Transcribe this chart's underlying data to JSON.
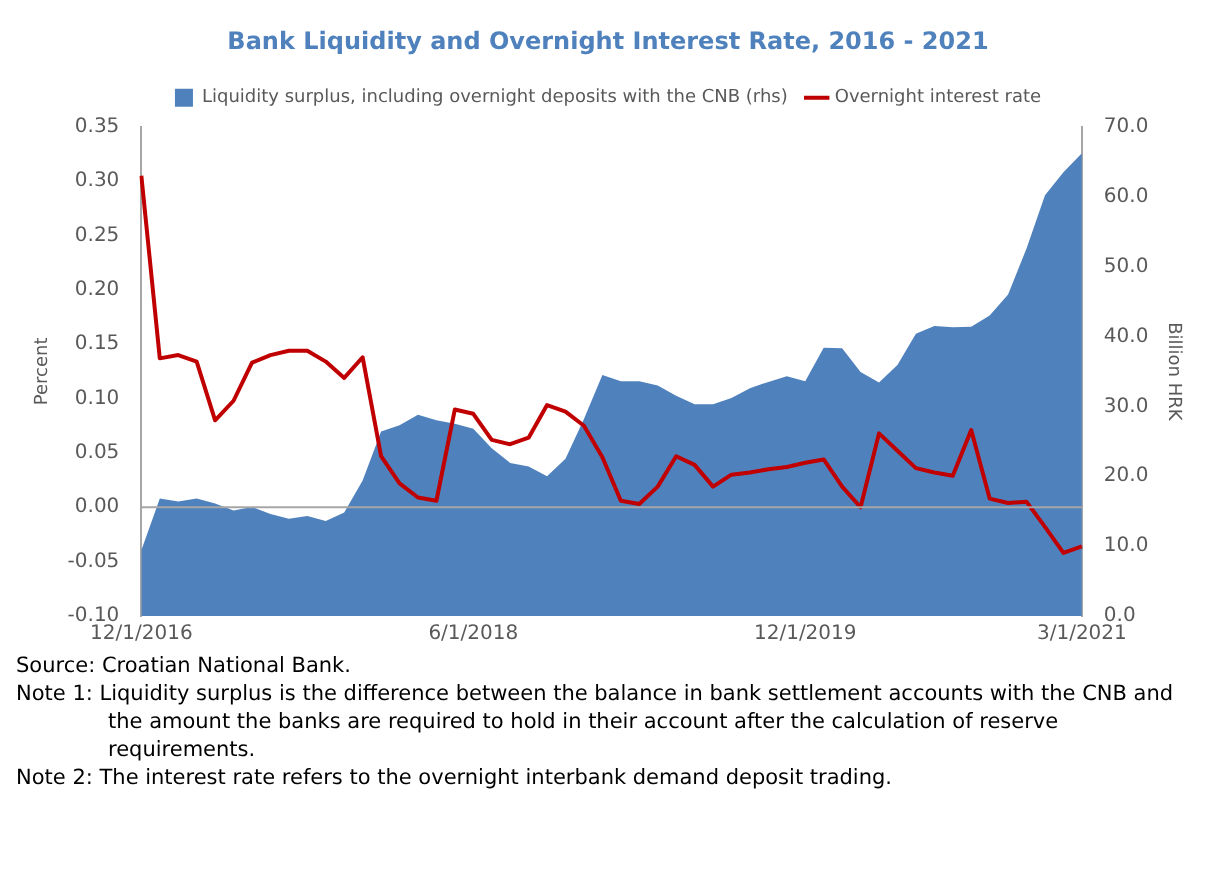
{
  "chart_data": {
    "type": "line",
    "title": "Bank Liquidity and Overnight Interest Rate, 2016 - 2021",
    "categories": [
      "12/1/2016",
      null,
      null,
      null,
      null,
      null,
      null,
      null,
      null,
      null,
      null,
      null,
      null,
      null,
      null,
      null,
      null,
      null,
      "6/1/2018",
      null,
      null,
      null,
      null,
      null,
      null,
      null,
      null,
      null,
      null,
      null,
      null,
      null,
      null,
      null,
      null,
      null,
      "12/1/2019",
      null,
      null,
      null,
      null,
      null,
      null,
      null,
      null,
      null,
      null,
      null,
      null,
      null,
      null,
      "3/1/2021"
    ],
    "series": [
      {
        "name": "Liquidity surplus, including overnight deposits with the CNB (rhs)",
        "type": "area",
        "axis": "y2",
        "color": "#4f81bd",
        "values": [
          9.4,
          16.8,
          16.4,
          16.8,
          16.1,
          15.1,
          15.6,
          14.6,
          13.9,
          14.3,
          13.6,
          14.8,
          19.4,
          26.4,
          27.3,
          28.8,
          28.0,
          27.5,
          26.8,
          24.0,
          21.9,
          21.4,
          20.0,
          22.5,
          28.2,
          34.5,
          33.6,
          33.6,
          33.0,
          31.5,
          30.3,
          30.3,
          31.2,
          32.6,
          33.5,
          34.3,
          33.6,
          38.4,
          38.3,
          34.9,
          33.4,
          35.9,
          40.4,
          41.5,
          41.3,
          41.4,
          43.0,
          46.0,
          52.6,
          60.2,
          63.5,
          66.2
        ]
      },
      {
        "name": "Overnight interest rate",
        "type": "line",
        "color": "#c00000",
        "values": [
          0.305,
          0.137,
          0.14,
          0.134,
          0.08,
          0.098,
          0.133,
          0.14,
          0.144,
          0.144,
          0.134,
          0.119,
          0.138,
          0.047,
          0.022,
          0.009,
          0.006,
          0.09,
          0.086,
          0.062,
          0.058,
          0.064,
          0.094,
          0.088,
          0.075,
          0.046,
          0.006,
          0.003,
          0.019,
          0.047,
          0.039,
          0.019,
          0.03,
          0.032,
          0.035,
          0.037,
          0.041,
          0.044,
          0.019,
          0.0,
          0.068,
          0.052,
          0.036,
          0.032,
          0.029,
          0.071,
          0.008,
          0.004,
          0.005,
          -0.018,
          -0.042,
          -0.036
        ]
      }
    ],
    "ylabel": "Percent",
    "y2label": "Billion HRK",
    "ylim": [
      -0.1,
      0.35
    ],
    "yticks": [
      {
        "value": -0.1,
        "label": "-0.10"
      },
      {
        "value": -0.05,
        "label": "-0.05"
      },
      {
        "value": 0,
        "label": "0.00"
      },
      {
        "value": 0.05,
        "label": "0.05"
      },
      {
        "value": 0.1,
        "label": "0.10"
      },
      {
        "value": 0.15,
        "label": "0.15"
      },
      {
        "value": 0.2,
        "label": "0.20"
      },
      {
        "value": 0.25,
        "label": "0.25"
      },
      {
        "value": 0.3,
        "label": "0.30"
      },
      {
        "value": 0.35,
        "label": "0.35"
      }
    ],
    "y2lim": [
      0,
      70
    ],
    "y2ticks": [
      {
        "value": 0,
        "label": "0.0"
      },
      {
        "value": 10,
        "label": "10.0"
      },
      {
        "value": 20,
        "label": "20.0"
      },
      {
        "value": 30,
        "label": "30.0"
      },
      {
        "value": 40,
        "label": "40.0"
      },
      {
        "value": 50,
        "label": "50.0"
      },
      {
        "value": 60,
        "label": "60.0"
      },
      {
        "value": 70,
        "label": "70.0"
      }
    ],
    "ref_lines": [
      {
        "axis": "y",
        "value": 0,
        "color": "#a6a6a6"
      }
    ],
    "grid": false,
    "legend": "top",
    "marker": "none",
    "line_style": "solid",
    "annotations": [
      "Source: Croatian National Bank.",
      "Note 1: Liquidity surplus is the difference between the balance in bank settlement accounts with the CNB and the amount the banks are required to hold in their account after the calculation of reserve requirements.",
      "Note 2: The interest rate refers to the overnight interbank demand deposit trading."
    ]
  }
}
